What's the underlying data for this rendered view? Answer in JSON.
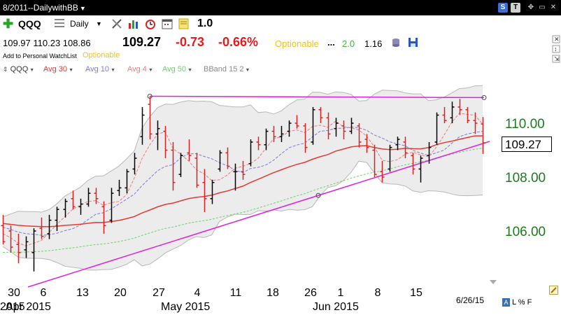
{
  "window": {
    "title": "8/2011--DailywithBB",
    "s_button": "S",
    "t_button": "T"
  },
  "toolbar": {
    "symbol": "QQQ",
    "period": "Daily",
    "compare_value": "1.0"
  },
  "quote": {
    "ohl": "109.97  110.23  108.86",
    "last": "109.27",
    "change": "-0.73",
    "change_pct": "-0.66%",
    "optionable": "Optionable",
    "dots": "...",
    "value_a": "2.0",
    "value_b": "1.16",
    "watchlist_link": "Add to Personal WatchList",
    "optionable_small": "Optionable"
  },
  "legend": {
    "symbol": "QQQ",
    "items": [
      {
        "label": "Avg 30",
        "color": "#e53935"
      },
      {
        "label": "Avg 10",
        "color": "#7b7bd8"
      },
      {
        "label": "Avg 4",
        "color": "#ef7b7b"
      },
      {
        "label": "Avg 50",
        "color": "#6ad36a"
      },
      {
        "label": "BBand 15 2",
        "color": "#8a8a8a"
      }
    ]
  },
  "colors": {
    "up_bar": "#000000",
    "down_bar": "#e02020",
    "trendline": "#e020e0",
    "price_axis": "#1d7a1d",
    "band_fill": "#ececec"
  },
  "chart_data": {
    "type": "ohlc",
    "date_range": "2015-03-30 to 2015-06-26",
    "last_date": "6/26/15",
    "last_price": 109.27,
    "last_price_label": "109.27",
    "y_ticks": [
      106.0,
      108.0,
      110.0
    ],
    "y_tick_labels": [
      "106.00",
      "108.00",
      "110.00"
    ],
    "x_day_labels": [
      "30",
      "6",
      "13",
      "20",
      "27",
      "4",
      "11",
      "18",
      "26",
      "1",
      "8",
      "15"
    ],
    "x_month_labels": [
      "Apr 2015",
      "May 2015",
      "Jun 2015"
    ],
    "overlapping_label": "2015",
    "bars": [
      {
        "date": "2015-03-30",
        "o": 106.2,
        "h": 106.6,
        "l": 105.5,
        "c": 105.6,
        "up": false
      },
      {
        "date": "2015-03-31",
        "o": 106.0,
        "h": 106.2,
        "l": 105.2,
        "c": 105.4,
        "up": false
      },
      {
        "date": "2015-04-01",
        "o": 105.5,
        "h": 105.9,
        "l": 104.8,
        "c": 105.2,
        "up": false
      },
      {
        "date": "2015-04-02",
        "o": 105.3,
        "h": 105.8,
        "l": 105.0,
        "c": 105.6,
        "up": true
      },
      {
        "date": "2015-04-06",
        "o": 105.2,
        "h": 106.1,
        "l": 104.5,
        "c": 106.0,
        "up": true
      },
      {
        "date": "2015-04-07",
        "o": 106.1,
        "h": 106.5,
        "l": 105.7,
        "c": 105.8,
        "up": false
      },
      {
        "date": "2015-04-08",
        "o": 105.9,
        "h": 106.6,
        "l": 105.7,
        "c": 106.4,
        "up": true
      },
      {
        "date": "2015-04-09",
        "o": 106.4,
        "h": 106.9,
        "l": 106.0,
        "c": 106.8,
        "up": true
      },
      {
        "date": "2015-04-10",
        "o": 106.8,
        "h": 107.2,
        "l": 106.5,
        "c": 107.1,
        "up": true
      },
      {
        "date": "2015-04-13",
        "o": 107.2,
        "h": 107.5,
        "l": 106.8,
        "c": 106.9,
        "up": false
      },
      {
        "date": "2015-04-14",
        "o": 106.9,
        "h": 107.2,
        "l": 106.6,
        "c": 107.0,
        "up": true
      },
      {
        "date": "2015-04-15",
        "o": 107.0,
        "h": 107.6,
        "l": 106.9,
        "c": 107.4,
        "up": true
      },
      {
        "date": "2015-04-16",
        "o": 107.4,
        "h": 107.6,
        "l": 107.0,
        "c": 107.2,
        "up": false
      },
      {
        "date": "2015-04-17",
        "o": 106.9,
        "h": 107.1,
        "l": 105.9,
        "c": 106.2,
        "up": false
      },
      {
        "date": "2015-04-20",
        "o": 106.4,
        "h": 107.6,
        "l": 106.3,
        "c": 107.4,
        "up": true
      },
      {
        "date": "2015-04-21",
        "o": 107.5,
        "h": 107.9,
        "l": 107.3,
        "c": 107.6,
        "up": true
      },
      {
        "date": "2015-04-22",
        "o": 107.6,
        "h": 108.3,
        "l": 107.4,
        "c": 108.2,
        "up": true
      },
      {
        "date": "2015-04-23",
        "o": 108.3,
        "h": 108.9,
        "l": 108.1,
        "c": 108.7,
        "up": true
      },
      {
        "date": "2015-04-24",
        "o": 109.5,
        "h": 110.6,
        "l": 109.2,
        "c": 110.3,
        "up": true
      },
      {
        "date": "2015-04-27",
        "o": 110.7,
        "h": 111.0,
        "l": 109.4,
        "c": 109.6,
        "up": false
      },
      {
        "date": "2015-04-28",
        "o": 109.6,
        "h": 110.1,
        "l": 109.0,
        "c": 109.8,
        "up": true
      },
      {
        "date": "2015-04-29",
        "o": 109.7,
        "h": 109.9,
        "l": 108.7,
        "c": 109.0,
        "up": false
      },
      {
        "date": "2015-04-30",
        "o": 109.0,
        "h": 109.3,
        "l": 107.5,
        "c": 107.8,
        "up": false
      },
      {
        "date": "2015-05-01",
        "o": 108.1,
        "h": 108.9,
        "l": 108.0,
        "c": 108.8,
        "up": true
      },
      {
        "date": "2015-05-04",
        "o": 108.9,
        "h": 109.4,
        "l": 108.6,
        "c": 108.8,
        "up": false
      },
      {
        "date": "2015-05-05",
        "o": 108.7,
        "h": 108.9,
        "l": 107.6,
        "c": 107.7,
        "up": false
      },
      {
        "date": "2015-05-06",
        "o": 107.8,
        "h": 108.3,
        "l": 106.7,
        "c": 107.2,
        "up": false
      },
      {
        "date": "2015-05-07",
        "o": 107.2,
        "h": 107.9,
        "l": 107.0,
        "c": 107.8,
        "up": true
      },
      {
        "date": "2015-05-08",
        "o": 108.3,
        "h": 109.0,
        "l": 108.2,
        "c": 108.9,
        "up": true
      },
      {
        "date": "2015-05-11",
        "o": 108.9,
        "h": 109.1,
        "l": 108.3,
        "c": 108.4,
        "up": false
      },
      {
        "date": "2015-05-12",
        "o": 108.2,
        "h": 108.5,
        "l": 107.5,
        "c": 108.2,
        "up": true
      },
      {
        "date": "2015-05-13",
        "o": 108.2,
        "h": 108.6,
        "l": 107.9,
        "c": 108.1,
        "up": false
      },
      {
        "date": "2015-05-14",
        "o": 108.5,
        "h": 109.4,
        "l": 108.4,
        "c": 109.3,
        "up": true
      },
      {
        "date": "2015-05-15",
        "o": 109.3,
        "h": 109.5,
        "l": 109.0,
        "c": 109.2,
        "up": false
      },
      {
        "date": "2015-05-18",
        "o": 109.2,
        "h": 109.8,
        "l": 109.0,
        "c": 109.7,
        "up": true
      },
      {
        "date": "2015-05-19",
        "o": 109.7,
        "h": 109.9,
        "l": 109.3,
        "c": 109.5,
        "up": false
      },
      {
        "date": "2015-05-20",
        "o": 109.5,
        "h": 109.9,
        "l": 109.3,
        "c": 109.6,
        "up": true
      },
      {
        "date": "2015-05-21",
        "o": 109.7,
        "h": 110.1,
        "l": 109.5,
        "c": 110.0,
        "up": true
      },
      {
        "date": "2015-05-22",
        "o": 110.0,
        "h": 110.3,
        "l": 109.8,
        "c": 109.9,
        "up": false
      },
      {
        "date": "2015-05-26",
        "o": 109.9,
        "h": 110.0,
        "l": 108.9,
        "c": 109.1,
        "up": false
      },
      {
        "date": "2015-05-27",
        "o": 109.3,
        "h": 110.6,
        "l": 109.2,
        "c": 110.5,
        "up": true
      },
      {
        "date": "2015-05-28",
        "o": 110.5,
        "h": 110.6,
        "l": 110.0,
        "c": 110.2,
        "up": false
      },
      {
        "date": "2015-05-29",
        "o": 110.2,
        "h": 110.4,
        "l": 109.4,
        "c": 109.6,
        "up": false
      },
      {
        "date": "2015-06-01",
        "o": 109.8,
        "h": 110.2,
        "l": 109.5,
        "c": 110.0,
        "up": true
      },
      {
        "date": "2015-06-02",
        "o": 109.9,
        "h": 110.1,
        "l": 109.4,
        "c": 109.7,
        "up": false
      },
      {
        "date": "2015-06-03",
        "o": 109.7,
        "h": 110.2,
        "l": 109.6,
        "c": 110.0,
        "up": true
      },
      {
        "date": "2015-06-04",
        "o": 109.9,
        "h": 110.0,
        "l": 109.1,
        "c": 109.3,
        "up": false
      },
      {
        "date": "2015-06-05",
        "o": 109.4,
        "h": 109.6,
        "l": 108.9,
        "c": 109.1,
        "up": false
      },
      {
        "date": "2015-06-08",
        "o": 109.0,
        "h": 109.2,
        "l": 108.0,
        "c": 108.1,
        "up": false
      },
      {
        "date": "2015-06-09",
        "o": 108.2,
        "h": 108.6,
        "l": 107.8,
        "c": 108.0,
        "up": false
      },
      {
        "date": "2015-06-10",
        "o": 108.3,
        "h": 109.2,
        "l": 108.2,
        "c": 109.1,
        "up": true
      },
      {
        "date": "2015-06-11",
        "o": 109.2,
        "h": 109.5,
        "l": 109.0,
        "c": 109.4,
        "up": true
      },
      {
        "date": "2015-06-12",
        "o": 109.3,
        "h": 109.5,
        "l": 108.7,
        "c": 108.9,
        "up": false
      },
      {
        "date": "2015-06-15",
        "o": 108.8,
        "h": 108.9,
        "l": 108.1,
        "c": 108.3,
        "up": false
      },
      {
        "date": "2015-06-16",
        "o": 108.3,
        "h": 108.8,
        "l": 107.8,
        "c": 108.7,
        "up": true
      },
      {
        "date": "2015-06-17",
        "o": 108.8,
        "h": 109.3,
        "l": 108.5,
        "c": 109.1,
        "up": true
      },
      {
        "date": "2015-06-18",
        "o": 109.3,
        "h": 110.4,
        "l": 109.2,
        "c": 110.3,
        "up": true
      },
      {
        "date": "2015-06-19",
        "o": 110.3,
        "h": 110.6,
        "l": 110.0,
        "c": 110.1,
        "up": false
      },
      {
        "date": "2015-06-22",
        "o": 110.2,
        "h": 110.8,
        "l": 110.0,
        "c": 110.6,
        "up": true
      },
      {
        "date": "2015-06-23",
        "o": 110.6,
        "h": 110.9,
        "l": 110.3,
        "c": 110.5,
        "up": false
      },
      {
        "date": "2015-06-24",
        "o": 110.5,
        "h": 110.6,
        "l": 110.0,
        "c": 110.1,
        "up": false
      },
      {
        "date": "2015-06-25",
        "o": 110.1,
        "h": 110.4,
        "l": 109.6,
        "c": 110.0,
        "up": false
      },
      {
        "date": "2015-06-26",
        "o": 109.97,
        "h": 110.23,
        "l": 108.86,
        "c": 109.27,
        "up": false
      }
    ]
  }
}
